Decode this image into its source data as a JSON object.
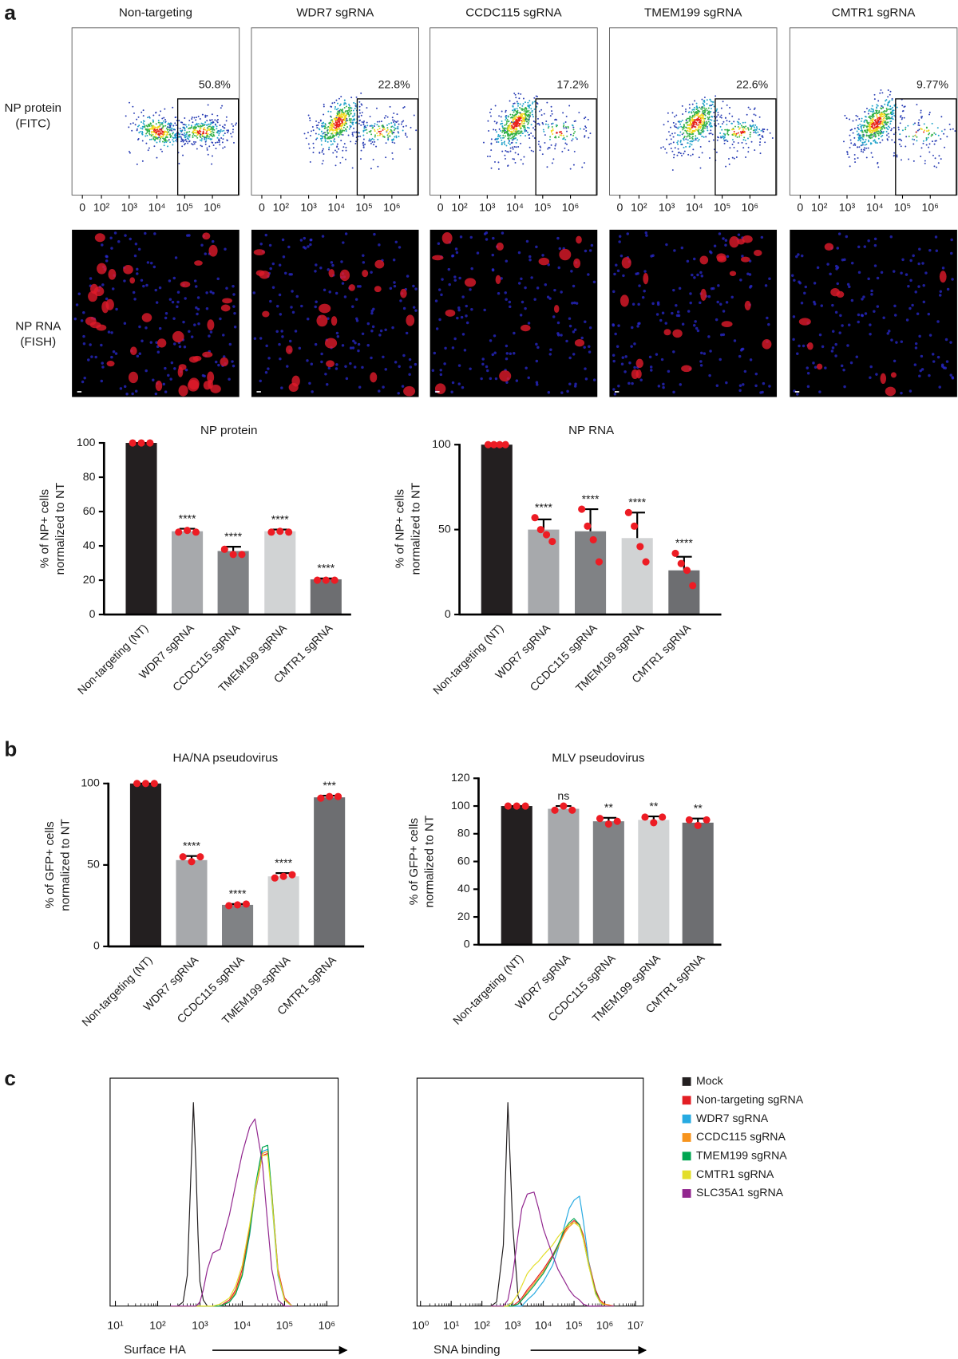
{
  "panel_labels": [
    "a",
    "b",
    "c"
  ],
  "flow": {
    "row_label": [
      "NP protein",
      "(FITC)"
    ],
    "plots": [
      {
        "title": "Non-targeting",
        "gate_label": "50.8%"
      },
      {
        "title": "WDR7 sgRNA",
        "gate_label": "22.8%"
      },
      {
        "title": "CCDC115 sgRNA",
        "gate_label": "17.2%"
      },
      {
        "title": "TMEM199 sgRNA",
        "gate_label": "22.6%"
      },
      {
        "title": "CMTR1 sgRNA",
        "gate_label": "9.77%"
      }
    ],
    "xticks": [
      0,
      {
        "value": 100,
        "label": "10²"
      },
      {
        "value": 1000,
        "label": "10³"
      },
      {
        "value": 10000,
        "label": "10⁴"
      },
      {
        "value": 100000,
        "label": "10⁵"
      },
      {
        "value": 1000000,
        "label": "10⁶"
      }
    ]
  },
  "fish": {
    "row_label": [
      "NP RNA",
      "(FISH)"
    ]
  },
  "chart_data": [
    {
      "type": "bar",
      "title": "NP protein",
      "ylabel": [
        "% of NP+ cells",
        "normalized to NT"
      ],
      "categories": [
        "Non-targeting (NT)",
        "WDR7 sgRNA",
        "CCDC115 sgRNA",
        "TMEM199 sgRNA",
        "CMTR1 sgRNA"
      ],
      "values": [
        100,
        48.5,
        37,
        48.5,
        20.5
      ],
      "errors": [
        0,
        1.5,
        2.5,
        1,
        0.5
      ],
      "points": [
        [
          100,
          100,
          100
        ],
        [
          48,
          49,
          48
        ],
        [
          38,
          35,
          35
        ],
        [
          48,
          48.5,
          48
        ],
        [
          20,
          20,
          20
        ]
      ],
      "significance": [
        null,
        "****",
        "****",
        "****",
        "****"
      ],
      "colors": [
        "#231f20",
        "#a7a9ac",
        "#808285",
        "#d1d3d4",
        "#6d6e71"
      ],
      "point_color": "#ed1c24",
      "ylim": [
        0,
        100
      ],
      "yticks": [
        0,
        20,
        40,
        60,
        80,
        100
      ]
    },
    {
      "type": "bar",
      "title": "NP RNA",
      "ylabel": [
        "% of NP+ cells",
        "normalized to NT"
      ],
      "categories": [
        "Non-targeting (NT)",
        "WDR7 sgRNA",
        "CCDC115 sgRNA",
        "TMEM199 sgRNA",
        "CMTR1 sgRNA"
      ],
      "values": [
        100,
        50,
        49,
        45,
        26
      ],
      "errors": [
        0,
        6,
        13,
        15,
        8
      ],
      "points": [
        [
          100,
          100,
          100,
          100
        ],
        [
          57,
          50,
          47,
          43
        ],
        [
          62,
          52,
          44,
          31
        ],
        [
          60,
          52,
          40,
          31
        ],
        [
          36,
          30,
          26,
          17
        ]
      ],
      "significance": [
        null,
        "****",
        "****",
        "****",
        "****"
      ],
      "colors": [
        "#231f20",
        "#a7a9ac",
        "#808285",
        "#d1d3d4",
        "#6d6e71"
      ],
      "point_color": "#ed1c24",
      "ylim": [
        0,
        100
      ],
      "yticks": [
        0,
        50,
        100
      ]
    },
    {
      "type": "bar",
      "title": "HA/NA pseudovirus",
      "ylabel": [
        "% of GFP+ cells",
        "normalized to NT"
      ],
      "categories": [
        "Non-targeting (NT)",
        "WDR7 sgRNA",
        "CCDC115 sgRNA",
        "TMEM199 sgRNA",
        "CMTR1 sgRNA"
      ],
      "values": [
        100,
        53,
        25.5,
        43,
        91.5
      ],
      "errors": [
        0,
        2.5,
        0.5,
        2,
        1
      ],
      "points": [
        [
          100,
          100,
          100
        ],
        [
          55,
          52,
          55
        ],
        [
          25,
          25.5,
          26
        ],
        [
          42,
          43,
          44
        ],
        [
          91,
          92,
          92
        ]
      ],
      "significance": [
        null,
        "****",
        "****",
        "****",
        "***"
      ],
      "colors": [
        "#231f20",
        "#a7a9ac",
        "#808285",
        "#d1d3d4",
        "#6d6e71"
      ],
      "point_color": "#ed1c24",
      "ylim": [
        0,
        100
      ],
      "yticks": [
        0,
        50,
        100
      ]
    },
    {
      "type": "bar",
      "title": "MLV pseudovirus",
      "ylabel": [
        "% of GFP+ cells",
        "normalized  to NT"
      ],
      "categories": [
        "Non-targeting (NT)",
        "WDR7 sgRNA",
        "CCDC115 sgRNA",
        "TMEM199 sgRNA",
        "CMTR1 sgRNA"
      ],
      "values": [
        100,
        98,
        89,
        90,
        88
      ],
      "errors": [
        0,
        2,
        2.5,
        2.5,
        3
      ],
      "points": [
        [
          100,
          100,
          100
        ],
        [
          97,
          100,
          97
        ],
        [
          91,
          87,
          89
        ],
        [
          92,
          88,
          92
        ],
        [
          90,
          86,
          90
        ]
      ],
      "significance": [
        null,
        "ns",
        "**",
        "**",
        "**"
      ],
      "colors": [
        "#231f20",
        "#a7a9ac",
        "#808285",
        "#d1d3d4",
        "#6d6e71"
      ],
      "point_color": "#ed1c24",
      "ylim": [
        0,
        120
      ],
      "yticks": [
        0,
        20,
        40,
        60,
        80,
        100,
        120
      ]
    },
    {
      "type": "line",
      "xlabel": "Surface HA",
      "log_x": true,
      "x": [
        200,
        300,
        400,
        500,
        600,
        700,
        800,
        900,
        1000,
        1200,
        1500,
        2000,
        3000,
        5000,
        7000,
        10000,
        15000,
        20000,
        30000,
        40000,
        50000,
        70000,
        100000,
        150000
      ],
      "series": [
        {
          "name": "Mock",
          "color": "#231f20",
          "values": [
            0,
            0,
            2,
            15,
            60,
            100,
            70,
            35,
            12,
            3,
            0,
            0,
            0,
            0,
            0,
            0,
            0,
            0,
            0,
            0,
            0,
            0,
            0,
            0
          ]
        },
        {
          "name": "Non-targeting sgRNA",
          "color": "#e31e24",
          "values": [
            0,
            0,
            0,
            0,
            0,
            0,
            0,
            0,
            0,
            0,
            0,
            0,
            0,
            3,
            8,
            18,
            38,
            55,
            74,
            75,
            55,
            18,
            4,
            0
          ]
        },
        {
          "name": "WDR7 sgRNA",
          "color": "#27aae1",
          "values": [
            0,
            0,
            0,
            0,
            0,
            0,
            0,
            0,
            0,
            0,
            0,
            0,
            0,
            2,
            6,
            15,
            35,
            55,
            76,
            77,
            52,
            15,
            3,
            0
          ]
        },
        {
          "name": "CCDC115 sgRNA",
          "color": "#f7941d",
          "values": [
            0,
            0,
            0,
            0,
            0,
            0,
            0,
            0,
            0,
            0,
            0,
            0,
            0,
            2,
            7,
            16,
            36,
            56,
            75,
            76,
            56,
            17,
            3,
            0
          ]
        },
        {
          "name": "TMEM199 sgRNA",
          "color": "#00a651",
          "values": [
            0,
            0,
            0,
            0,
            0,
            0,
            0,
            0,
            0,
            0,
            0,
            0,
            0,
            2,
            6,
            15,
            36,
            58,
            78,
            79,
            55,
            16,
            3,
            0
          ]
        },
        {
          "name": "CMTR1 sgRNA",
          "color": "#e3de2b",
          "values": [
            0,
            0,
            0,
            0,
            0,
            0,
            0,
            0,
            0,
            0,
            0,
            0,
            1,
            4,
            10,
            20,
            40,
            57,
            74,
            74,
            53,
            16,
            3,
            0
          ]
        },
        {
          "name": "SLC35A1 sgRNA",
          "color": "#92278f",
          "values": [
            0,
            0,
            0,
            0,
            0,
            0,
            0,
            1,
            2,
            8,
            18,
            26,
            28,
            45,
            60,
            75,
            88,
            92,
            70,
            40,
            18,
            3,
            0,
            0
          ]
        }
      ],
      "xlim": [
        7.5,
        1850000
      ],
      "ylim": [
        0,
        112
      ],
      "xticks": [
        {
          "value": 10,
          "label": "10¹"
        },
        {
          "value": 100,
          "label": "10²"
        },
        {
          "value": 1000,
          "label": "10³"
        },
        {
          "value": 10000,
          "label": "10⁴"
        },
        {
          "value": 100000,
          "label": "10⁵"
        },
        {
          "value": 1000000,
          "label": "10⁶"
        }
      ]
    },
    {
      "type": "line",
      "xlabel": "SNA binding",
      "log_x": true,
      "x": [
        200,
        300,
        500,
        700,
        1000,
        1500,
        2000,
        3000,
        5000,
        7000,
        10000,
        20000,
        30000,
        50000,
        70000,
        100000,
        150000,
        200000,
        300000,
        500000,
        700000,
        1000000,
        2000000
      ],
      "series": [
        {
          "color": "#231f20",
          "values": [
            0,
            2,
            30,
            100,
            40,
            5,
            0,
            0,
            0,
            0,
            0,
            0,
            0,
            0,
            0,
            0,
            0,
            0,
            0,
            0,
            0,
            0,
            0
          ]
        },
        {
          "color": "#e31e24",
          "values": [
            0,
            0,
            0,
            0,
            0,
            2,
            4,
            8,
            12,
            15,
            18,
            25,
            30,
            37,
            40,
            42,
            40,
            35,
            22,
            8,
            3,
            1,
            0
          ]
        },
        {
          "color": "#27aae1",
          "values": [
            0,
            0,
            0,
            0,
            0,
            0,
            0,
            3,
            6,
            9,
            12,
            20,
            28,
            40,
            48,
            52,
            54,
            42,
            22,
            6,
            2,
            0,
            0
          ]
        },
        {
          "color": "#f7941d",
          "values": [
            0,
            0,
            0,
            0,
            0,
            1,
            3,
            7,
            11,
            14,
            17,
            24,
            29,
            36,
            39,
            41,
            40,
            34,
            21,
            7,
            2,
            1,
            0
          ]
        },
        {
          "color": "#00a651",
          "values": [
            0,
            0,
            0,
            0,
            0,
            1,
            3,
            6,
            10,
            13,
            16,
            24,
            30,
            38,
            41,
            43,
            40,
            33,
            20,
            7,
            2,
            0,
            0
          ]
        },
        {
          "color": "#e3de2b",
          "values": [
            0,
            0,
            0,
            0,
            2,
            6,
            10,
            16,
            20,
            22,
            25,
            30,
            34,
            38,
            40,
            41,
            39,
            33,
            20,
            6,
            2,
            0,
            0
          ]
        },
        {
          "color": "#92278f",
          "values": [
            0,
            0,
            0,
            3,
            15,
            35,
            48,
            55,
            56,
            48,
            38,
            25,
            18,
            12,
            8,
            5,
            3,
            1,
            0,
            0,
            0,
            0,
            0
          ]
        }
      ],
      "xlim": [
        0.77,
        18000000
      ],
      "ylim": [
        0,
        112
      ],
      "xticks": [
        {
          "value": 1,
          "label": "10⁰"
        },
        {
          "value": 10,
          "label": "10¹"
        },
        {
          "value": 100,
          "label": "10²"
        },
        {
          "value": 1000,
          "label": "10³"
        },
        {
          "value": 10000,
          "label": "10⁴"
        },
        {
          "value": 100000,
          "label": "10⁵"
        },
        {
          "value": 1000000,
          "label": "10⁶"
        },
        {
          "value": 10000000,
          "label": "10⁷"
        }
      ]
    }
  ]
}
